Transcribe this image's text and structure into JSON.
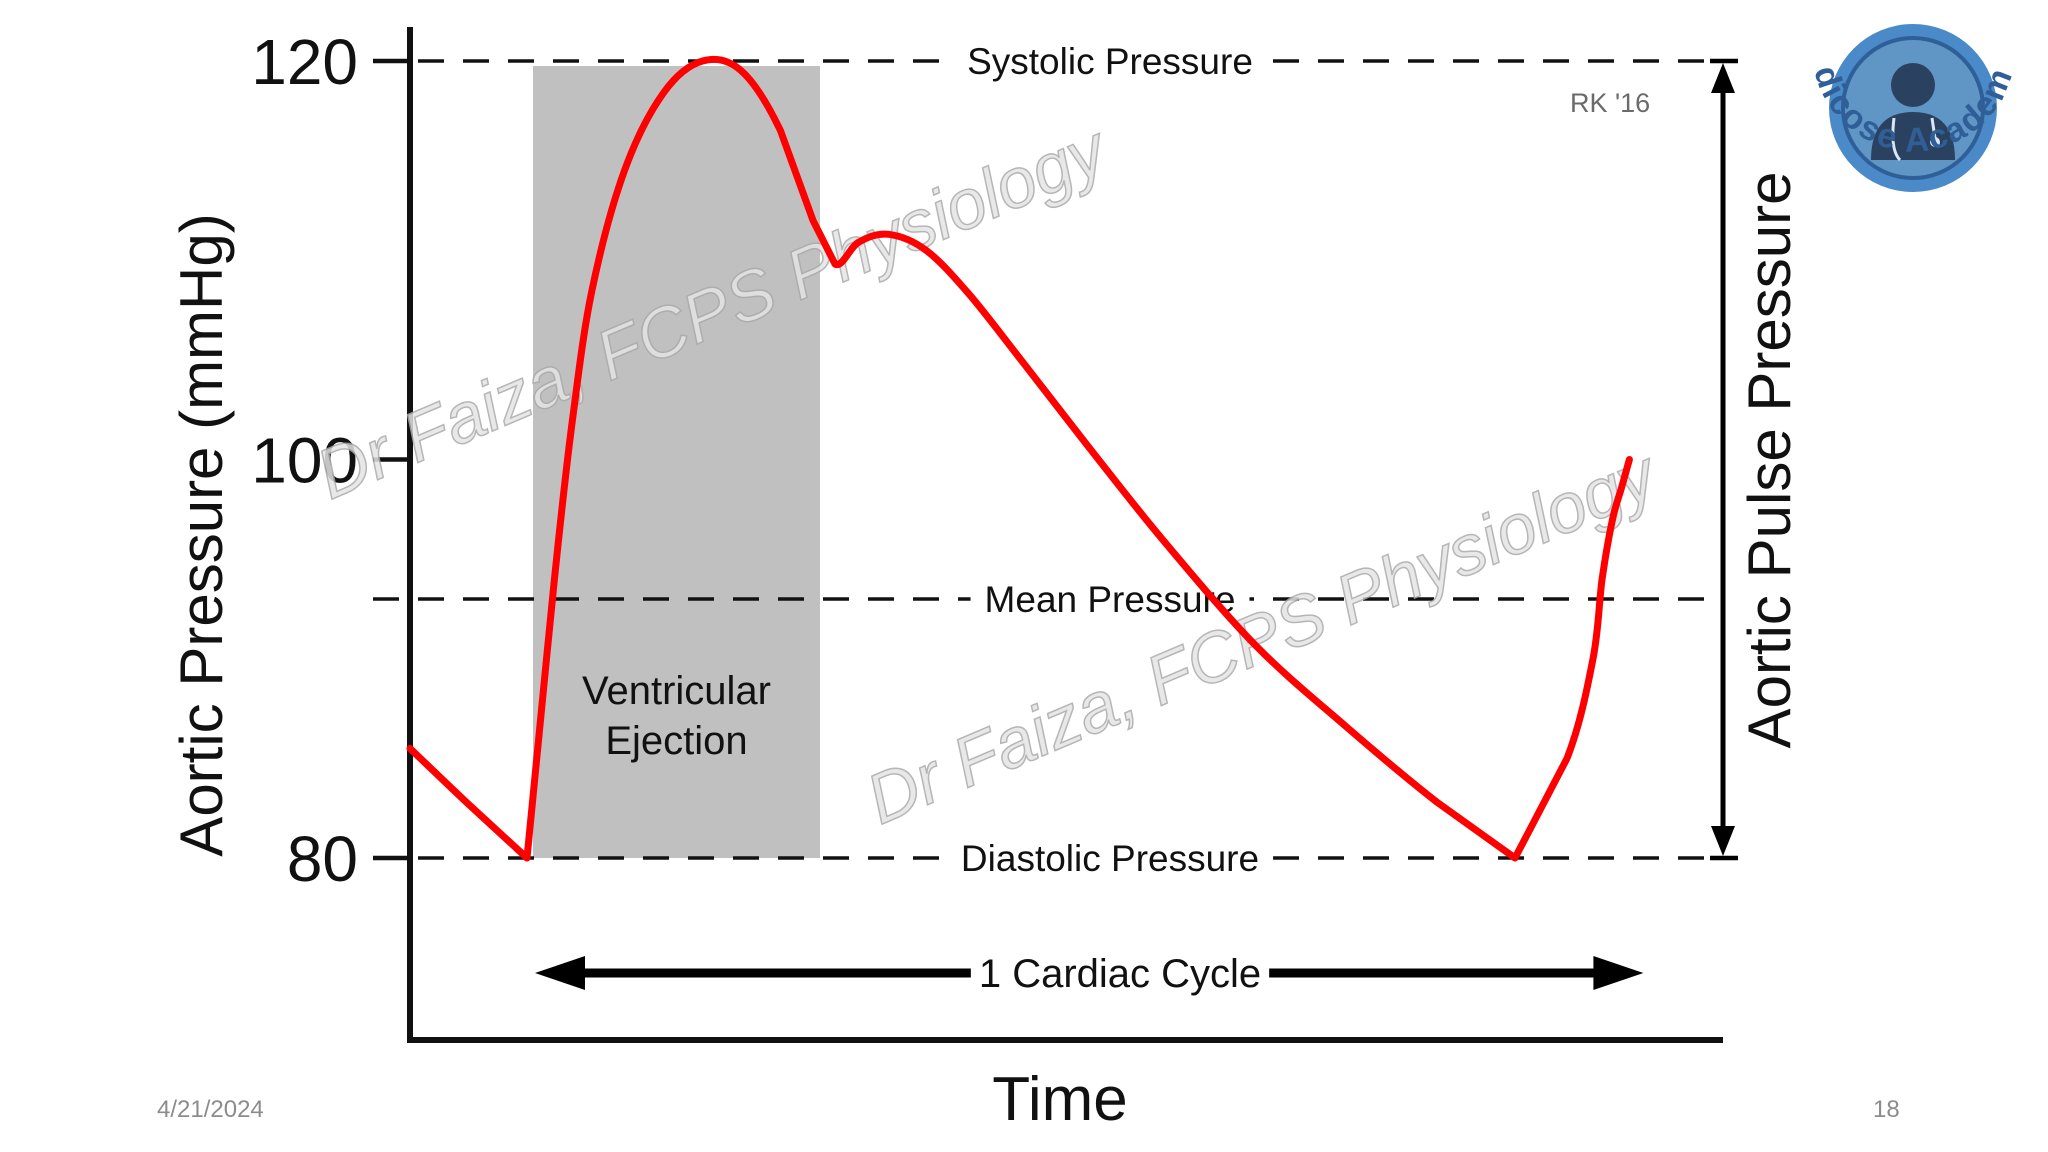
{
  "chart_data": {
    "type": "line",
    "title": "",
    "xlabel": "Time",
    "ylabel": "Aortic Pressure (mmHg)",
    "ylim": [
      70,
      120
    ],
    "yticks": [
      80,
      100,
      120
    ],
    "ytick_labels": [
      "80",
      "100",
      "120"
    ],
    "xlim": [
      0,
      1.19
    ],
    "grid": false,
    "series": [
      {
        "name": "Aortic pressure",
        "color": "#ff0000",
        "x": [
          0.0,
          0.045,
          0.09,
          0.105,
          0.114,
          0.125,
          0.14,
          0.165,
          0.195,
          0.225,
          0.255,
          0.285,
          0.31,
          0.327,
          0.345,
          0.368,
          0.397,
          0.43,
          0.47,
          0.52,
          0.58,
          0.65,
          0.72,
          0.79,
          0.85,
          0.89,
          0.91,
          0.917,
          0.925,
          0.932,
          0.938
        ],
        "y": [
          85.5,
          82.7,
          80.0,
          90.0,
          95.8,
          102.0,
          108.5,
          114.5,
          118.4,
          120.0,
          119.5,
          116.5,
          112.0,
          109.8,
          110.9,
          111.3,
          110.5,
          108.3,
          105.0,
          100.8,
          95.9,
          90.7,
          86.6,
          82.8,
          80.0,
          85.0,
          90.0,
          94.0,
          97.0,
          98.6,
          100.0
        ]
      }
    ],
    "reference_lines": [
      {
        "name": "systolic",
        "value": 120,
        "label": "Systolic Pressure"
      },
      {
        "name": "mean",
        "value": 93,
        "label": "Mean Pressure"
      },
      {
        "name": "diastolic",
        "value": 80,
        "label": "Diastolic Pressure"
      }
    ],
    "shaded_region": {
      "x_start": 0.09,
      "x_end": 0.31,
      "label_lines": [
        "Ventricular",
        "Ejection"
      ],
      "color": "#c0c0c0"
    },
    "cycle_span": {
      "x_start": 0.09,
      "x_end": 0.938,
      "label": "1 Cardiac Cycle"
    },
    "pulse_pressure": {
      "from": 80,
      "to": 120,
      "label": "Aortic Pulse Pressure"
    },
    "annotations": {
      "credit": "RK '16",
      "watermark_1": "Dr Faiza, FCPS Physiology",
      "watermark_2": "Dr Faiza, FCPS Physiology"
    }
  },
  "logo": {
    "text": "Medicose Academics",
    "icon": "doctor-avatar-icon",
    "ring_color": "#4a8ac8",
    "text_color": "#2f5f96"
  },
  "footer": {
    "date": "4/21/2024",
    "page_number": "18"
  }
}
